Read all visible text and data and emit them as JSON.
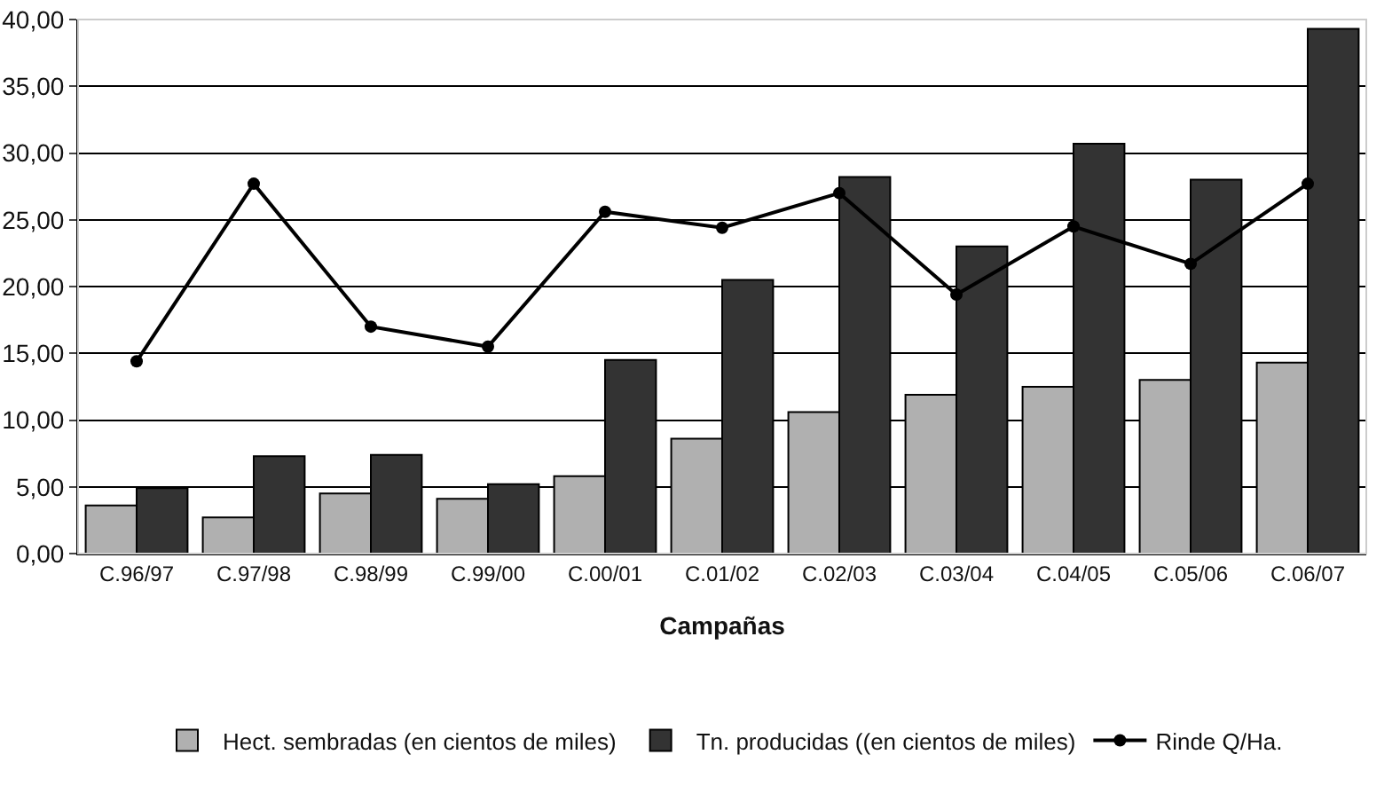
{
  "chart_data": {
    "type": "bar",
    "xlabel": "Campañas",
    "categories": [
      "C.96/97",
      "C.97/98",
      "C.98/99",
      "C.99/00",
      "C.00/01",
      "C.01/02",
      "C.02/03",
      "C.03/04",
      "C.04/05",
      "C.05/06",
      "C.06/07"
    ],
    "series": [
      {
        "name": "Hect. sembradas (en cientos de miles)",
        "color": "#b0b0b0",
        "values": [
          3.6,
          2.7,
          4.5,
          4.1,
          5.8,
          8.6,
          10.6,
          11.9,
          12.5,
          13.0,
          14.3
        ]
      },
      {
        "name": "Tn. producidas ((en cientos de miles)",
        "color": "#333333",
        "values": [
          4.9,
          7.3,
          7.4,
          5.2,
          14.5,
          20.5,
          28.2,
          23.0,
          30.7,
          28.0,
          39.3
        ]
      },
      {
        "name": "Rinde Q/Ha.",
        "type": "line",
        "color": "#000000",
        "marker": "circle",
        "values": [
          14.4,
          27.7,
          17.0,
          15.5,
          25.6,
          24.4,
          27.0,
          19.4,
          24.5,
          21.7,
          27.7
        ]
      }
    ],
    "ylim": [
      0,
      40
    ],
    "yticks": [
      {
        "value": 0,
        "label": "0,00"
      },
      {
        "value": 5,
        "label": "5,00"
      },
      {
        "value": 10,
        "label": "10,00"
      },
      {
        "value": 15,
        "label": "15,00"
      },
      {
        "value": 20,
        "label": "20,00"
      },
      {
        "value": 25,
        "label": "25,00"
      },
      {
        "value": 30,
        "label": "30,00"
      },
      {
        "value": 35,
        "label": "35,00"
      },
      {
        "value": 40,
        "label": "40,00"
      }
    ],
    "grid": "y",
    "legend": "bottom"
  }
}
